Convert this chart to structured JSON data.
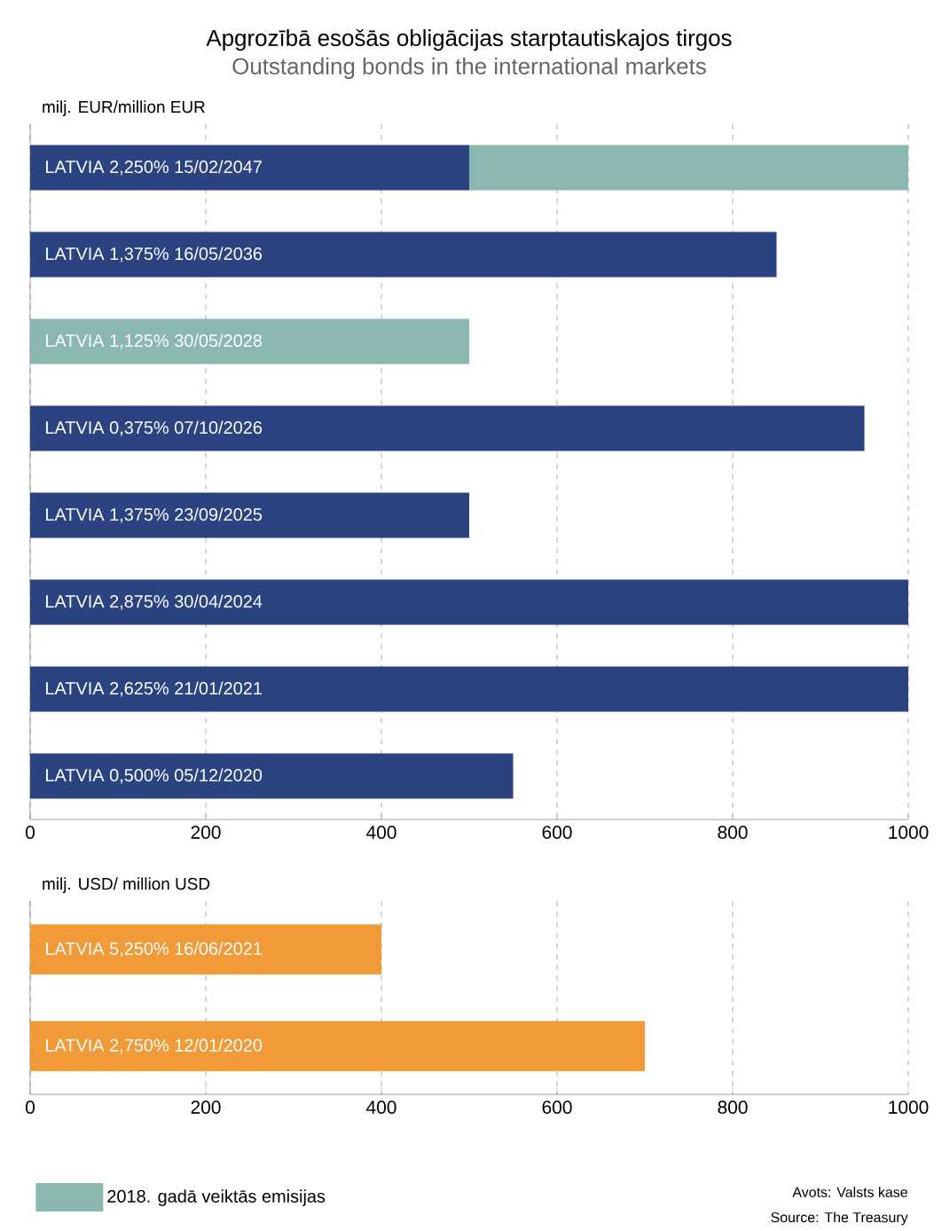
{
  "chart_data": [
    {
      "type": "bar",
      "orientation": "horizontal",
      "stacked": true,
      "title": "Apgrozībā esošās obligācijas starptautiskajos tirgos",
      "subtitle": "Outstanding bonds in the international markets",
      "xlabel": "milj. EUR/million EUR",
      "categories": [
        "LATVIA 2,250% 15/02/2047",
        "LATVIA 1,375% 16/05/2036",
        "LATVIA 1,125% 30/05/2028",
        "LATVIA 0,375% 07/10/2026",
        "LATVIA 1,375% 23/09/2025",
        "LATVIA 2,875% 30/04/2024",
        "LATVIA 2,625% 21/01/2021",
        "LATVIA 0,500% 05/12/2020"
      ],
      "series": [
        {
          "color": "#2b4380",
          "values": [
            500,
            850,
            null,
            950,
            500,
            1000,
            1000,
            550
          ]
        },
        {
          "name": "2018. gadā veiktās emisijas",
          "color": "#8ab8b1",
          "values": [
            500,
            null,
            500,
            null,
            null,
            null,
            null,
            null
          ]
        }
      ],
      "xlim": [
        0,
        1000
      ],
      "xticks": [
        0,
        200,
        400,
        600,
        800,
        1000
      ],
      "grid": "x",
      "legend": "bottom"
    },
    {
      "type": "bar",
      "orientation": "horizontal",
      "xlabel": "milj. USD/ million USD",
      "categories": [
        "LATVIA 5,250% 16/06/2021",
        "LATVIA 2,750% 12/01/2020"
      ],
      "values": [
        400,
        700
      ],
      "color": "#f29a38",
      "xlim": [
        0,
        1000
      ],
      "xticks": [
        0,
        200,
        400,
        600,
        800,
        1000
      ],
      "grid": "x",
      "annotations": [
        "Avots: Valsts kase",
        "Source: The Treasury"
      ]
    }
  ]
}
